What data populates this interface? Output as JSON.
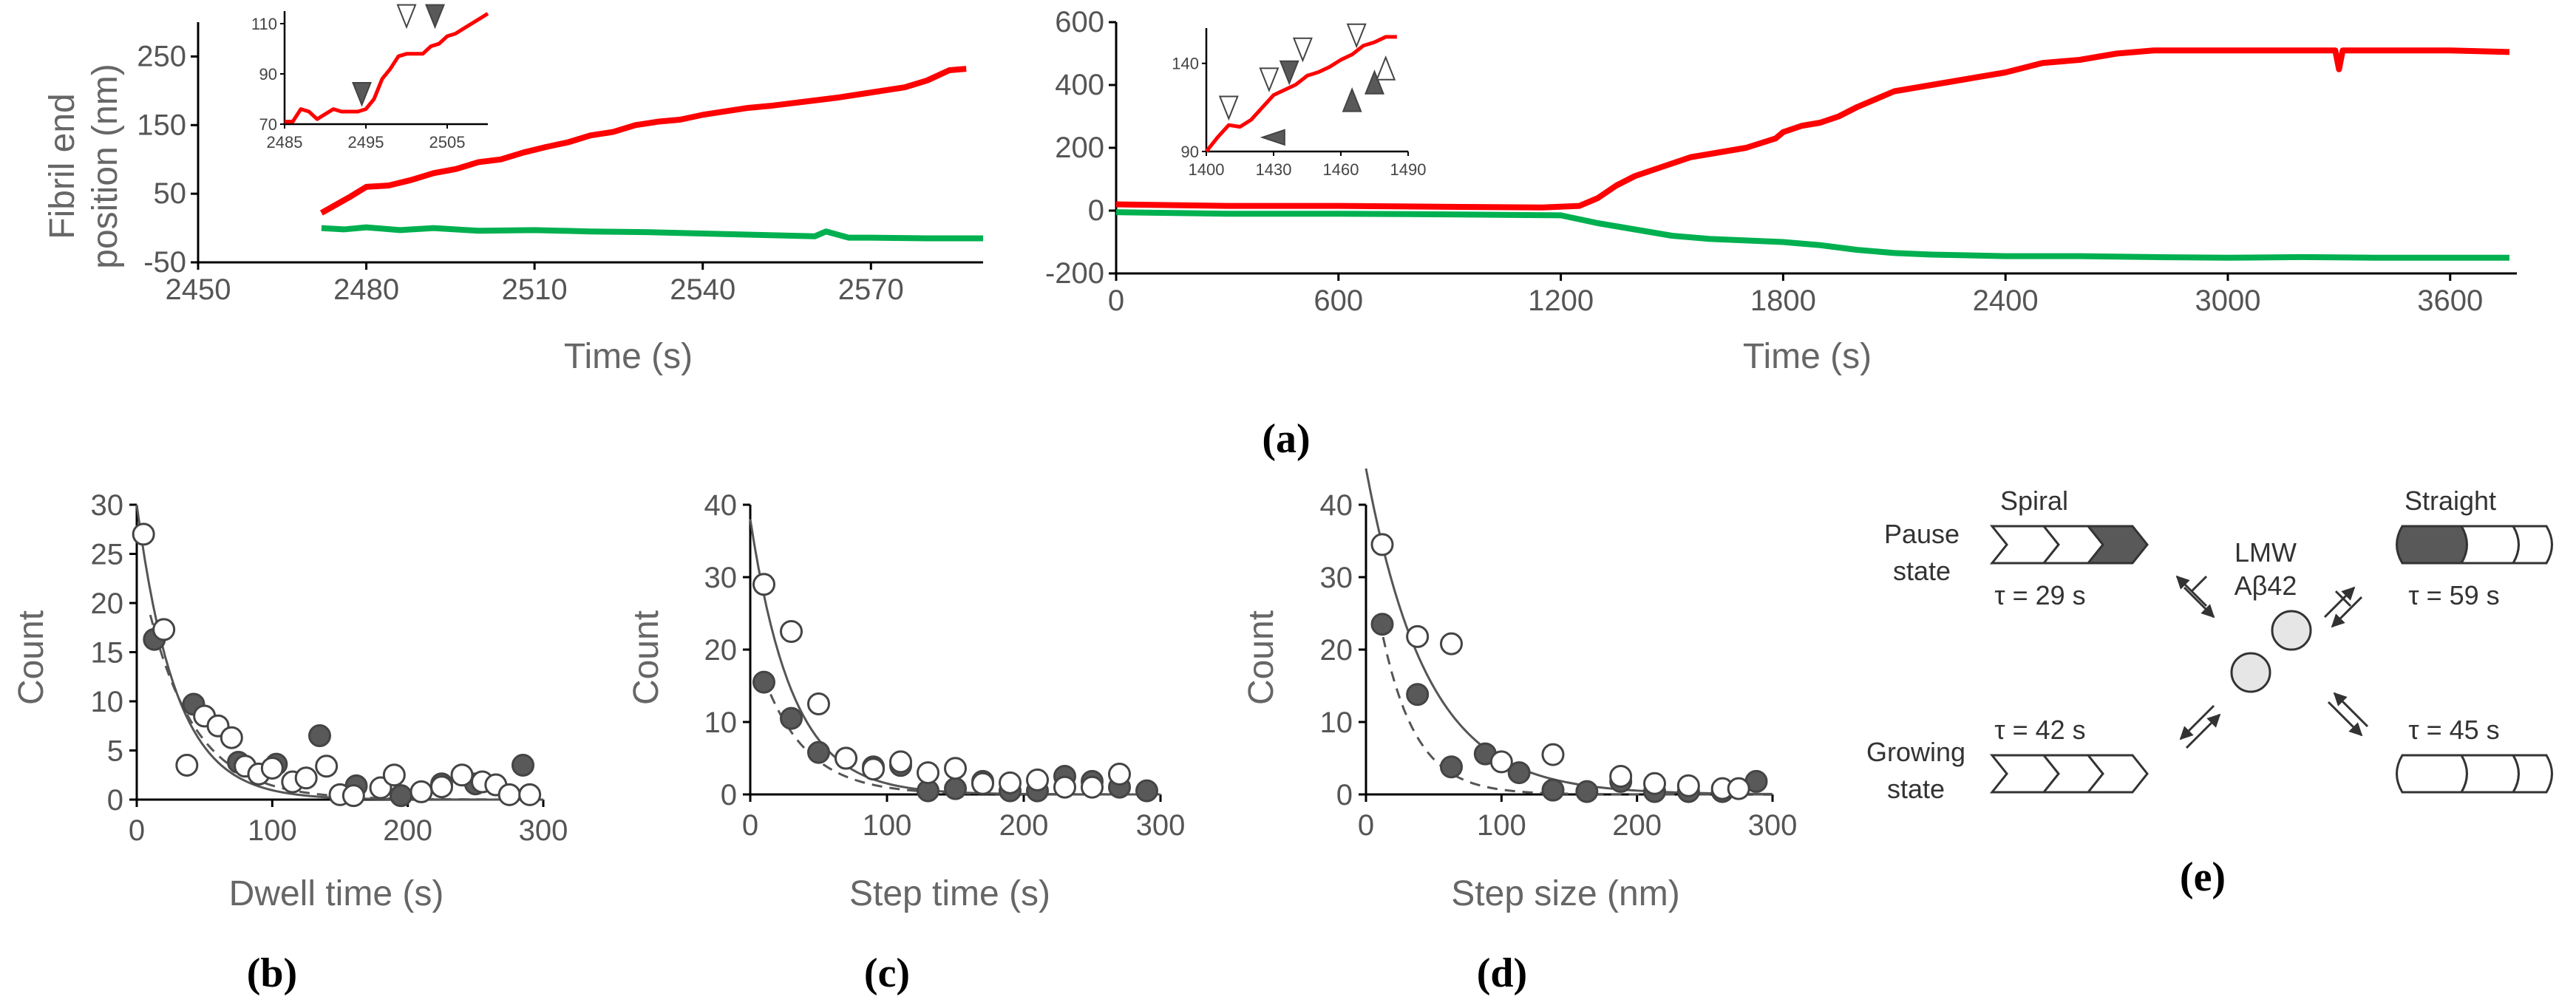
{
  "colors": {
    "red": "#ff0000",
    "green": "#00b050",
    "filled": "#595959",
    "open": "#ffffff",
    "axis": "#000000"
  },
  "labels": {
    "a": "(a)",
    "b": "(b)",
    "c": "(c)",
    "d": "(d)",
    "e": "(e)"
  },
  "chart_data": [
    {
      "id": "a_left",
      "type": "line",
      "title": "",
      "xlabel": "Time (s)",
      "ylabel_line1": "Fibril end",
      "ylabel_line2": "position (nm)",
      "xlim": [
        2450,
        2590
      ],
      "ylim": [
        -50,
        300
      ],
      "xticks": [
        2450,
        2480,
        2510,
        2540,
        2570
      ],
      "yticks": [
        -50,
        50,
        150,
        250
      ],
      "series": [
        {
          "name": "red",
          "x": [
            2472,
            2477,
            2480,
            2484,
            2488,
            2492,
            2496,
            2500,
            2504,
            2508,
            2512,
            2516,
            2520,
            2524,
            2528,
            2532,
            2536,
            2540,
            2544,
            2548,
            2552,
            2556,
            2560,
            2564,
            2568,
            2572,
            2576,
            2580,
            2584,
            2587
          ],
          "y": [
            22,
            45,
            60,
            62,
            70,
            80,
            86,
            96,
            100,
            110,
            118,
            125,
            135,
            140,
            150,
            155,
            158,
            165,
            170,
            175,
            178,
            182,
            186,
            190,
            195,
            200,
            205,
            215,
            230,
            232
          ]
        },
        {
          "name": "green",
          "x": [
            2472,
            2476,
            2480,
            2486,
            2492,
            2500,
            2510,
            2520,
            2530,
            2540,
            2550,
            2560,
            2562,
            2566,
            2570,
            2580,
            2590
          ],
          "y": [
            0,
            -2,
            1,
            -3,
            0,
            -4,
            -3,
            -5,
            -6,
            -8,
            -10,
            -12,
            -5,
            -14,
            -14,
            -15,
            -15
          ]
        }
      ],
      "inset": {
        "xlim": [
          2485,
          2510
        ],
        "ylim": [
          70,
          115
        ],
        "xticks": [
          2485,
          2495,
          2505
        ],
        "yticks": [
          70,
          90,
          110
        ],
        "x": [
          2485,
          2486,
          2487,
          2488,
          2489,
          2490,
          2491,
          2492,
          2493,
          2494,
          2495,
          2496,
          2497,
          2498,
          2499,
          2500,
          2501,
          2502,
          2503,
          2504,
          2505,
          2506,
          2507,
          2508,
          2509,
          2510
        ],
        "y": [
          71,
          71,
          76,
          75,
          72,
          74,
          76,
          75,
          75,
          75,
          76,
          80,
          88,
          92,
          97,
          98,
          98,
          98,
          101,
          102,
          105,
          106,
          108,
          110,
          112,
          114
        ],
        "markers": [
          {
            "x": 2494.5,
            "y": 80,
            "dir": "down",
            "fill": "filled"
          },
          {
            "x": 2500,
            "y": 111,
            "dir": "down",
            "fill": "open"
          },
          {
            "x": 2503.5,
            "y": 111,
            "dir": "down",
            "fill": "filled"
          }
        ]
      }
    },
    {
      "id": "a_right",
      "type": "line",
      "title": "",
      "xlabel": "Time (s)",
      "xlim": [
        0,
        3780
      ],
      "ylim": [
        -200,
        600
      ],
      "xticks": [
        0,
        600,
        1200,
        1800,
        2400,
        3000,
        3600
      ],
      "yticks": [
        -200,
        0,
        200,
        400,
        600
      ],
      "series": [
        {
          "name": "red",
          "x": [
            0,
            300,
            600,
            900,
            1150,
            1250,
            1300,
            1350,
            1400,
            1450,
            1500,
            1550,
            1600,
            1650,
            1700,
            1780,
            1800,
            1850,
            1900,
            1950,
            2000,
            2100,
            2200,
            2300,
            2400,
            2500,
            2600,
            2700,
            2800,
            3000,
            3200,
            3290,
            3300,
            3310,
            3400,
            3600,
            3760
          ],
          "y": [
            20,
            15,
            15,
            12,
            10,
            15,
            40,
            80,
            110,
            130,
            150,
            170,
            180,
            190,
            200,
            230,
            250,
            270,
            280,
            300,
            330,
            380,
            400,
            420,
            440,
            470,
            480,
            500,
            510,
            510,
            510,
            510,
            450,
            510,
            510,
            510,
            505
          ]
        },
        {
          "name": "green",
          "x": [
            0,
            300,
            600,
            900,
            1200,
            1260,
            1300,
            1400,
            1500,
            1600,
            1800,
            1900,
            2000,
            2100,
            2200,
            2400,
            2600,
            2800,
            3000,
            3200,
            3400,
            3600,
            3760
          ],
          "y": [
            -5,
            -10,
            -10,
            -12,
            -15,
            -30,
            -40,
            -60,
            -80,
            -90,
            -100,
            -110,
            -125,
            -135,
            -140,
            -145,
            -145,
            -148,
            -150,
            -148,
            -150,
            -150,
            -150
          ]
        }
      ],
      "inset": {
        "xlim": [
          1400,
          1490
        ],
        "ylim": [
          90,
          160
        ],
        "xticks": [
          1400,
          1430,
          1460,
          1490
        ],
        "yticks": [
          90,
          140
        ],
        "x": [
          1400,
          1405,
          1410,
          1415,
          1420,
          1425,
          1430,
          1435,
          1440,
          1445,
          1450,
          1455,
          1460,
          1465,
          1470,
          1475,
          1480,
          1485
        ],
        "y": [
          90,
          98,
          105,
          104,
          108,
          115,
          122,
          125,
          128,
          133,
          135,
          138,
          142,
          145,
          150,
          152,
          155,
          155
        ],
        "markers": [
          {
            "x": 1410,
            "y": 112,
            "dir": "down",
            "fill": "open"
          },
          {
            "x": 1428,
            "y": 128,
            "dir": "down",
            "fill": "open"
          },
          {
            "x": 1437,
            "y": 132,
            "dir": "down",
            "fill": "filled"
          },
          {
            "x": 1443,
            "y": 145,
            "dir": "down",
            "fill": "open"
          },
          {
            "x": 1467,
            "y": 153,
            "dir": "down",
            "fill": "open"
          },
          {
            "x": 1425,
            "y": 98,
            "dir": "left",
            "fill": "filled"
          },
          {
            "x": 1465,
            "y": 122,
            "dir": "up",
            "fill": "filled"
          },
          {
            "x": 1475,
            "y": 132,
            "dir": "up",
            "fill": "filled"
          },
          {
            "x": 1480,
            "y": 140,
            "dir": "up",
            "fill": "open"
          }
        ]
      }
    },
    {
      "id": "b",
      "type": "scatter",
      "xlabel": "Dwell time (s)",
      "ylabel": "Count",
      "xlim": [
        0,
        300
      ],
      "ylim": [
        0,
        30
      ],
      "xticks": [
        0,
        100,
        200,
        300
      ],
      "yticks": [
        0,
        5,
        10,
        15,
        20,
        25,
        30
      ],
      "series": [
        {
          "name": "filled",
          "x": [
            13,
            42,
            75,
            103,
            135,
            162,
            195,
            225,
            250,
            285
          ],
          "y": [
            16.3,
            9.7,
            3.8,
            3.6,
            6.5,
            1.4,
            0.4,
            1.6,
            1.6,
            3.5
          ]
        },
        {
          "name": "open",
          "x": [
            5,
            20,
            37,
            50,
            60,
            70,
            80,
            90,
            100,
            115,
            125,
            140,
            150,
            160,
            180,
            190,
            210,
            225,
            240,
            255,
            265,
            275,
            290
          ],
          "y": [
            27,
            17.3,
            3.5,
            8.5,
            7.5,
            6.3,
            3.4,
            2.6,
            3.2,
            1.8,
            2.2,
            3.4,
            0.5,
            0.4,
            1.2,
            2.5,
            0.8,
            1.3,
            2.5,
            1.8,
            1.5,
            0.5,
            0.5
          ]
        }
      ],
      "fit_open": {
        "A": 30,
        "tau": 29
      },
      "fit_filled": {
        "A": 25,
        "tau": 35
      }
    },
    {
      "id": "c",
      "type": "scatter",
      "xlabel": "Step time (s)",
      "ylabel": "Count",
      "xlim": [
        0,
        300
      ],
      "ylim": [
        0,
        40
      ],
      "xticks": [
        0,
        100,
        200,
        300
      ],
      "yticks": [
        0,
        10,
        20,
        30,
        40
      ],
      "series": [
        {
          "name": "filled",
          "x": [
            10,
            30,
            50,
            70,
            90,
            110,
            130,
            150,
            170,
            190,
            210,
            230,
            250,
            270,
            290
          ],
          "y": [
            15.5,
            10.5,
            5.8,
            5,
            3.8,
            4,
            0.5,
            0.8,
            1.8,
            0.5,
            0.5,
            2.5,
            1.8,
            1,
            0.5
          ]
        },
        {
          "name": "open",
          "x": [
            10,
            30,
            50,
            70,
            90,
            110,
            130,
            150,
            170,
            190,
            210,
            230,
            250,
            270
          ],
          "y": [
            29,
            22.5,
            12.5,
            5,
            3.5,
            4.5,
            3,
            3.6,
            1.5,
            1.6,
            2,
            1,
            1,
            2.8
          ]
        }
      ],
      "fit_open": {
        "A": 38,
        "tau": 31
      },
      "fit_filled": {
        "A": 22,
        "tau": 32
      }
    },
    {
      "id": "d",
      "type": "scatter",
      "xlabel": "Step size (nm)",
      "ylabel": "Count",
      "xlim": [
        0,
        300
      ],
      "ylim": [
        0,
        40
      ],
      "xticks": [
        0,
        100,
        200,
        300
      ],
      "yticks": [
        0,
        10,
        20,
        30,
        40
      ],
      "series": [
        {
          "name": "filled",
          "x": [
            12,
            38,
            63,
            88,
            113,
            138,
            163,
            188,
            213,
            238,
            263,
            288
          ],
          "y": [
            23.5,
            13.8,
            3.8,
            5.6,
            3,
            0.6,
            0.4,
            1.8,
            0.4,
            0.4,
            0.4,
            1.8
          ]
        },
        {
          "name": "open",
          "x": [
            12,
            38,
            63,
            100,
            138,
            188,
            213,
            238,
            263,
            275
          ],
          "y": [
            34.5,
            21.8,
            20.8,
            4.5,
            5.5,
            2.5,
            1.5,
            1.2,
            0.8,
            0.8
          ]
        }
      ],
      "fit_open": {
        "A": 45,
        "tau": 45
      },
      "fit_filled": {
        "A": 36,
        "tau": 25
      }
    }
  ],
  "scheme": {
    "spiral": "Spiral",
    "straight": "Straight",
    "pause_line1": "Pause",
    "pause_line2": "state",
    "growing_line1": "Growing",
    "growing_line2": "state",
    "lmw_line1": "LMW",
    "lmw_line2": "Aβ42",
    "tau_tl": "τ = 29 s",
    "tau_tr": "τ = 59 s",
    "tau_bl": "τ = 42 s",
    "tau_br": "τ = 45 s"
  }
}
